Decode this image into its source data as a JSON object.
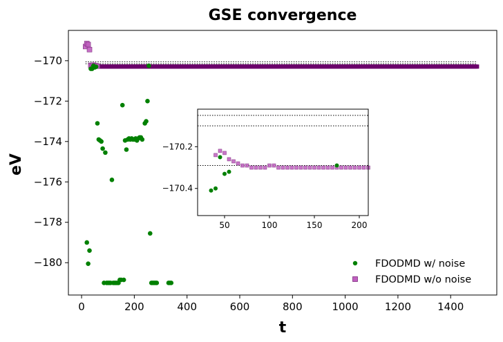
{
  "chart_data": {
    "type": "scatter",
    "title": "GSE convergence",
    "xlabel": "t",
    "ylabel": "eV",
    "xlim": [
      -50,
      1575
    ],
    "ylim": [
      -181.6,
      -168.5
    ],
    "xticks": [
      0,
      200,
      400,
      600,
      800,
      1000,
      1200,
      1400
    ],
    "yticks": [
      -170,
      -172,
      -174,
      -176,
      -178,
      -180
    ],
    "xtick_labels": [
      "0",
      "200",
      "400",
      "600",
      "800",
      "1000",
      "1200",
      "1400"
    ],
    "ytick_labels": [
      "−170",
      "−172",
      "−174",
      "−176",
      "−178",
      "−180"
    ],
    "reference_lines": [
      -170.05,
      -170.15
    ],
    "legend_position": "lower-right",
    "colors": {
      "noise": "#008000",
      "nonoise": "#bf5fbf",
      "nonoise_edge": "#7f2f7f",
      "dense": "#6a006a"
    },
    "series": [
      {
        "name": "FDODMD w/ noise",
        "marker": "circle",
        "x": [
          20,
          25,
          30,
          35,
          40,
          45,
          50,
          55,
          60,
          65,
          70,
          75,
          80,
          85,
          90,
          95,
          100,
          105,
          110,
          115,
          120,
          125,
          130,
          135,
          140,
          145,
          150,
          155,
          160,
          165,
          170,
          175,
          180,
          185,
          190,
          195,
          200,
          205,
          210,
          215,
          220,
          225,
          230,
          240,
          245,
          250,
          255,
          260,
          265,
          270,
          275,
          280,
          285,
          330,
          335,
          340
        ],
        "y": [
          -179.0,
          -180.05,
          -179.4,
          -170.4,
          -170.4,
          -170.25,
          -170.33,
          -170.3,
          -173.1,
          -173.9,
          -173.95,
          -174.0,
          -174.35,
          -181.0,
          -174.55,
          -181.0,
          -181.0,
          -181.0,
          -181.0,
          -175.9,
          -181.0,
          -181.0,
          -181.0,
          -181.0,
          -181.0,
          -180.85,
          -180.85,
          -172.2,
          -180.85,
          -173.95,
          -174.4,
          -173.9,
          -173.85,
          -173.9,
          -173.85,
          -173.9,
          -173.9,
          -173.85,
          -173.95,
          -173.85,
          -173.8,
          -173.8,
          -173.9,
          -173.1,
          -173.0,
          -172.0,
          -170.25,
          -178.55,
          -181.0,
          -181.0,
          -181.0,
          -181.0,
          -181.0,
          -181.0,
          -181.0,
          -181.0
        ]
      },
      {
        "name": "FDODMD w/o noise",
        "marker": "square",
        "x": [
          15,
          20,
          25,
          30,
          35,
          40,
          45,
          50,
          55,
          60
        ],
        "y": [
          -169.3,
          -169.15,
          -169.2,
          -169.45,
          -170.23,
          -170.24,
          -170.22,
          -170.25,
          -170.25,
          -170.27
        ],
        "dense_from": 65,
        "dense_to": 1500,
        "dense_step": 5,
        "dense_value": -170.29
      }
    ],
    "inset": {
      "xlim": [
        20,
        210
      ],
      "ylim": [
        -170.53,
        -170.02
      ],
      "xticks": [
        50,
        100,
        150,
        200
      ],
      "yticks": [
        -170.2,
        -170.4
      ],
      "xtick_labels": [
        "50",
        "100",
        "150",
        "200"
      ],
      "ytick_labels": [
        "−170.2",
        "−170.4"
      ],
      "reference_lines": [
        -170.05,
        -170.1,
        -170.29
      ],
      "noise_points": {
        "x": [
          35,
          40,
          45,
          50,
          55,
          175
        ],
        "y": [
          -170.41,
          -170.4,
          -170.25,
          -170.33,
          -170.32,
          -170.29
        ]
      },
      "nonoise_points": {
        "x": [
          40,
          45,
          50,
          55,
          60,
          65,
          70,
          75,
          80,
          85,
          90,
          95,
          100,
          105,
          110,
          115,
          120,
          125,
          130,
          135,
          140,
          145,
          150,
          155,
          160,
          165,
          170,
          175,
          180,
          185,
          190,
          195,
          200,
          205,
          210
        ],
        "y": [
          -170.24,
          -170.22,
          -170.23,
          -170.26,
          -170.27,
          -170.28,
          -170.29,
          -170.29,
          -170.3,
          -170.3,
          -170.3,
          -170.3,
          -170.29,
          -170.29,
          -170.3,
          -170.3,
          -170.3,
          -170.3,
          -170.3,
          -170.3,
          -170.3,
          -170.3,
          -170.3,
          -170.3,
          -170.3,
          -170.3,
          -170.3,
          -170.3,
          -170.3,
          -170.3,
          -170.3,
          -170.3,
          -170.3,
          -170.3,
          -170.3
        ]
      }
    }
  }
}
